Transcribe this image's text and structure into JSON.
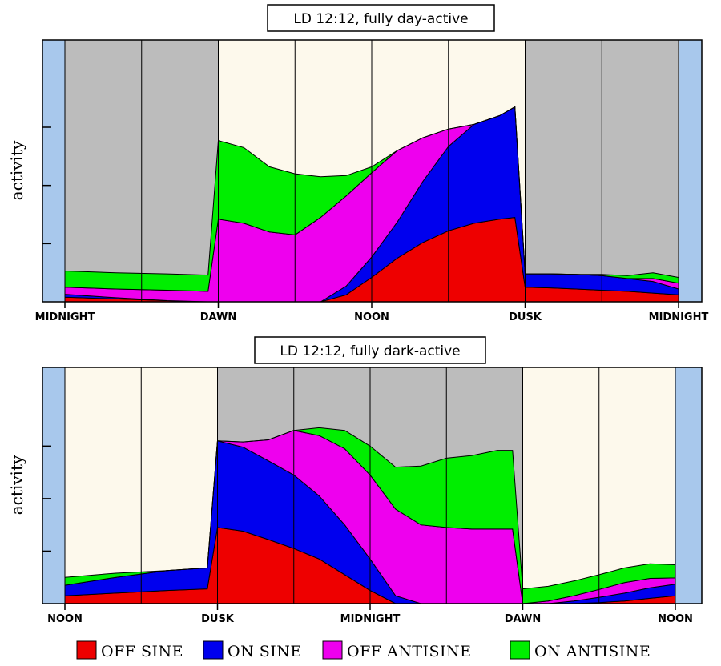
{
  "colors": {
    "day_bg": "#fdf9ec",
    "night_bg": "#bcbcbc",
    "edge_band": "#a8c8ec",
    "divider": "#000000"
  },
  "legend": [
    {
      "name": "OFF SINE",
      "color": "#ee0000"
    },
    {
      "name": "ON SINE",
      "color": "#0000ee"
    },
    {
      "name": "OFF ANTISINE",
      "color": "#ee00ee"
    },
    {
      "name": "ON ANTISINE",
      "color": "#00ee00"
    }
  ],
  "chart_data": [
    {
      "type": "area",
      "stacked": true,
      "title": "LD 12:12, fully day-active",
      "xlabel": "",
      "ylabel": "activity",
      "x_unit": "hours from midnight",
      "xlim": [
        0,
        24
      ],
      "ylim": [
        0,
        4.5
      ],
      "x_ticks": [
        {
          "value": 0,
          "label": "MIDNIGHT"
        },
        {
          "value": 6,
          "label": "DAWN"
        },
        {
          "value": 12,
          "label": "NOON"
        },
        {
          "value": 18,
          "label": "DUSK"
        },
        {
          "value": 24,
          "label": "MIDNIGHT"
        }
      ],
      "y_ticks": [
        1,
        2,
        3
      ],
      "grid": "vertical lines every 3 hours",
      "shading": [
        {
          "from": 0,
          "to": 6,
          "phase": "night"
        },
        {
          "from": 6,
          "to": 18,
          "phase": "day"
        },
        {
          "from": 18,
          "to": 24,
          "phase": "night"
        }
      ],
      "x": [
        0,
        2,
        4,
        5.6,
        6,
        7,
        8,
        9,
        10,
        11,
        12,
        13,
        14,
        15,
        16,
        17,
        17.6,
        18,
        19,
        20,
        21,
        22,
        23,
        24
      ],
      "series": [
        {
          "name": "OFF SINE",
          "color": "#ee0000",
          "values": [
            0.08,
            0.05,
            0.02,
            0.0,
            0.0,
            0.0,
            0.0,
            0.0,
            0.0,
            0.12,
            0.42,
            0.75,
            1.02,
            1.22,
            1.35,
            1.42,
            1.45,
            0.25,
            0.24,
            0.22,
            0.2,
            0.18,
            0.15,
            0.12
          ]
        },
        {
          "name": "ON SINE",
          "color": "#0000ee",
          "values": [
            0.05,
            0.02,
            0.0,
            0.0,
            0.0,
            0.0,
            0.0,
            0.0,
            0.0,
            0.15,
            0.35,
            0.62,
            1.05,
            1.45,
            1.7,
            1.78,
            1.9,
            0.23,
            0.24,
            0.25,
            0.25,
            0.22,
            0.2,
            0.1
          ]
        },
        {
          "name": "OFF ANTISINE",
          "color": "#ee00ee",
          "values": [
            0.12,
            0.15,
            0.18,
            0.18,
            1.42,
            1.35,
            1.2,
            1.15,
            1.45,
            1.55,
            1.45,
            1.23,
            0.75,
            0.3,
            0.0,
            0.0,
            0.0,
            0.0,
            0.0,
            0.0,
            0.0,
            0.0,
            0.05,
            0.1
          ]
        },
        {
          "name": "ON ANTISINE",
          "color": "#00ee00",
          "values": [
            0.28,
            0.28,
            0.28,
            0.28,
            1.35,
            1.3,
            1.12,
            1.05,
            0.7,
            0.35,
            0.1,
            0.0,
            0.0,
            0.0,
            0.0,
            0.0,
            0.0,
            0.0,
            0.0,
            0.0,
            0.02,
            0.05,
            0.1,
            0.1
          ]
        }
      ]
    },
    {
      "type": "area",
      "stacked": true,
      "title": "LD 12:12, fully dark-active",
      "xlabel": "",
      "ylabel": "activity",
      "x_unit": "hours from noon",
      "xlim": [
        0,
        24
      ],
      "ylim": [
        0,
        4.5
      ],
      "x_ticks": [
        {
          "value": 0,
          "label": "NOON"
        },
        {
          "value": 6,
          "label": "DUSK"
        },
        {
          "value": 12,
          "label": "MIDNIGHT"
        },
        {
          "value": 18,
          "label": "DAWN"
        },
        {
          "value": 24,
          "label": "NOON"
        }
      ],
      "y_ticks": [
        1,
        2,
        3
      ],
      "grid": "vertical lines every 3 hours",
      "shading": [
        {
          "from": 0,
          "to": 6,
          "phase": "day"
        },
        {
          "from": 6,
          "to": 18,
          "phase": "night"
        },
        {
          "from": 18,
          "to": 24,
          "phase": "day"
        }
      ],
      "x": [
        0,
        2,
        4,
        5.6,
        6,
        7,
        8,
        9,
        10,
        11,
        12,
        13,
        14,
        15,
        16,
        17,
        17.6,
        18,
        19,
        20,
        21,
        22,
        23,
        24
      ],
      "series": [
        {
          "name": "OFF SINE",
          "color": "#ee0000",
          "values": [
            0.15,
            0.2,
            0.25,
            0.28,
            1.45,
            1.38,
            1.22,
            1.05,
            0.85,
            0.55,
            0.25,
            0.0,
            0.0,
            0.0,
            0.0,
            0.0,
            0.0,
            0.0,
            0.0,
            0.0,
            0.02,
            0.05,
            0.1,
            0.15
          ]
        },
        {
          "name": "ON SINE",
          "color": "#0000ee",
          "values": [
            0.2,
            0.3,
            0.38,
            0.4,
            1.65,
            1.6,
            1.5,
            1.4,
            1.2,
            0.95,
            0.6,
            0.15,
            0.0,
            0.0,
            0.0,
            0.0,
            0.0,
            0.0,
            0.0,
            0.05,
            0.1,
            0.15,
            0.2,
            0.22
          ]
        },
        {
          "name": "OFF ANTISINE",
          "color": "#ee00ee",
          "values": [
            0.0,
            0.0,
            0.0,
            0.0,
            0.0,
            0.1,
            0.4,
            0.85,
            1.15,
            1.45,
            1.6,
            1.65,
            1.5,
            1.45,
            1.42,
            1.42,
            1.42,
            0.0,
            0.05,
            0.1,
            0.15,
            0.2,
            0.18,
            0.12
          ]
        },
        {
          "name": "ON ANTISINE",
          "color": "#00ee00",
          "values": [
            0.15,
            0.08,
            0.0,
            0.0,
            0.0,
            0.0,
            0.0,
            0.0,
            0.15,
            0.35,
            0.55,
            0.8,
            1.12,
            1.32,
            1.4,
            1.5,
            1.5,
            0.28,
            0.28,
            0.28,
            0.28,
            0.28,
            0.28,
            0.25
          ]
        }
      ]
    }
  ]
}
